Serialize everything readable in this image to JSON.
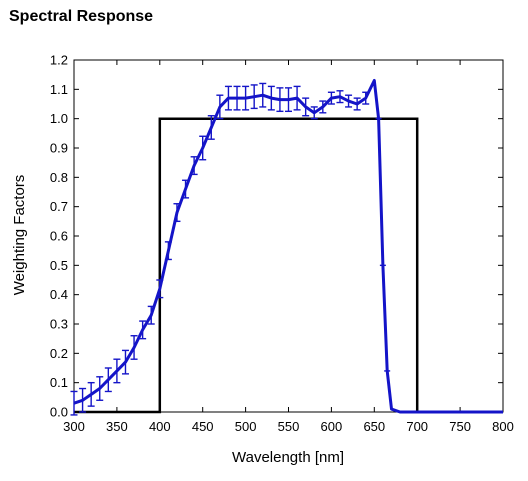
{
  "title": "Spectral Response",
  "chart_data": {
    "type": "line",
    "title": "Spectral Response",
    "xlabel": "Wavelength [nm]",
    "ylabel": "Weighting Factors",
    "xlim": [
      300,
      800
    ],
    "ylim": [
      0.0,
      1.2
    ],
    "xticks": [
      "300",
      "350",
      "400",
      "450",
      "500",
      "550",
      "600",
      "650",
      "700",
      "750",
      "800"
    ],
    "yticks": [
      "0.0",
      "0.1",
      "0.2",
      "0.3",
      "0.4",
      "0.5",
      "0.6",
      "0.7",
      "0.8",
      "0.9",
      "1.0",
      "1.1",
      "1.2"
    ],
    "grid": false,
    "colors": {
      "measured": "#1414c8",
      "ideal": "#000000"
    },
    "series": [
      {
        "x": [
          300,
          400,
          400,
          700,
          700,
          800
        ],
        "y": [
          0.0,
          0.0,
          1.0,
          1.0,
          0.0,
          0.0
        ]
      },
      {
        "x": [
          300,
          310,
          320,
          330,
          340,
          350,
          360,
          370,
          380,
          390,
          400,
          410,
          420,
          430,
          440,
          450,
          460,
          470,
          480,
          490,
          500,
          510,
          520,
          530,
          540,
          550,
          560,
          570,
          580,
          590,
          600,
          610,
          620,
          630,
          640,
          650,
          655,
          660,
          665,
          670,
          680,
          700,
          750,
          800
        ],
        "y": [
          0.03,
          0.04,
          0.06,
          0.08,
          0.11,
          0.14,
          0.17,
          0.22,
          0.28,
          0.33,
          0.42,
          0.55,
          0.68,
          0.76,
          0.84,
          0.9,
          0.97,
          1.04,
          1.07,
          1.07,
          1.07,
          1.075,
          1.08,
          1.07,
          1.065,
          1.065,
          1.07,
          1.04,
          1.02,
          1.04,
          1.07,
          1.075,
          1.06,
          1.05,
          1.07,
          1.13,
          1.0,
          0.5,
          0.14,
          0.01,
          0.0,
          0.0,
          0.0,
          0.0
        ],
        "err": [
          0.04,
          0.04,
          0.04,
          0.04,
          0.04,
          0.04,
          0.04,
          0.04,
          0.03,
          0.03,
          0.03,
          0.03,
          0.03,
          0.03,
          0.03,
          0.04,
          0.04,
          0.04,
          0.04,
          0.04,
          0.04,
          0.04,
          0.04,
          0.04,
          0.04,
          0.04,
          0.04,
          0.03,
          0.02,
          0.02,
          0.02,
          0.02,
          0.02,
          0.02,
          0.02,
          0.0,
          0.0,
          0.0,
          0.0,
          0.0,
          0.0,
          0.0,
          0.0,
          0.0
        ]
      }
    ]
  }
}
